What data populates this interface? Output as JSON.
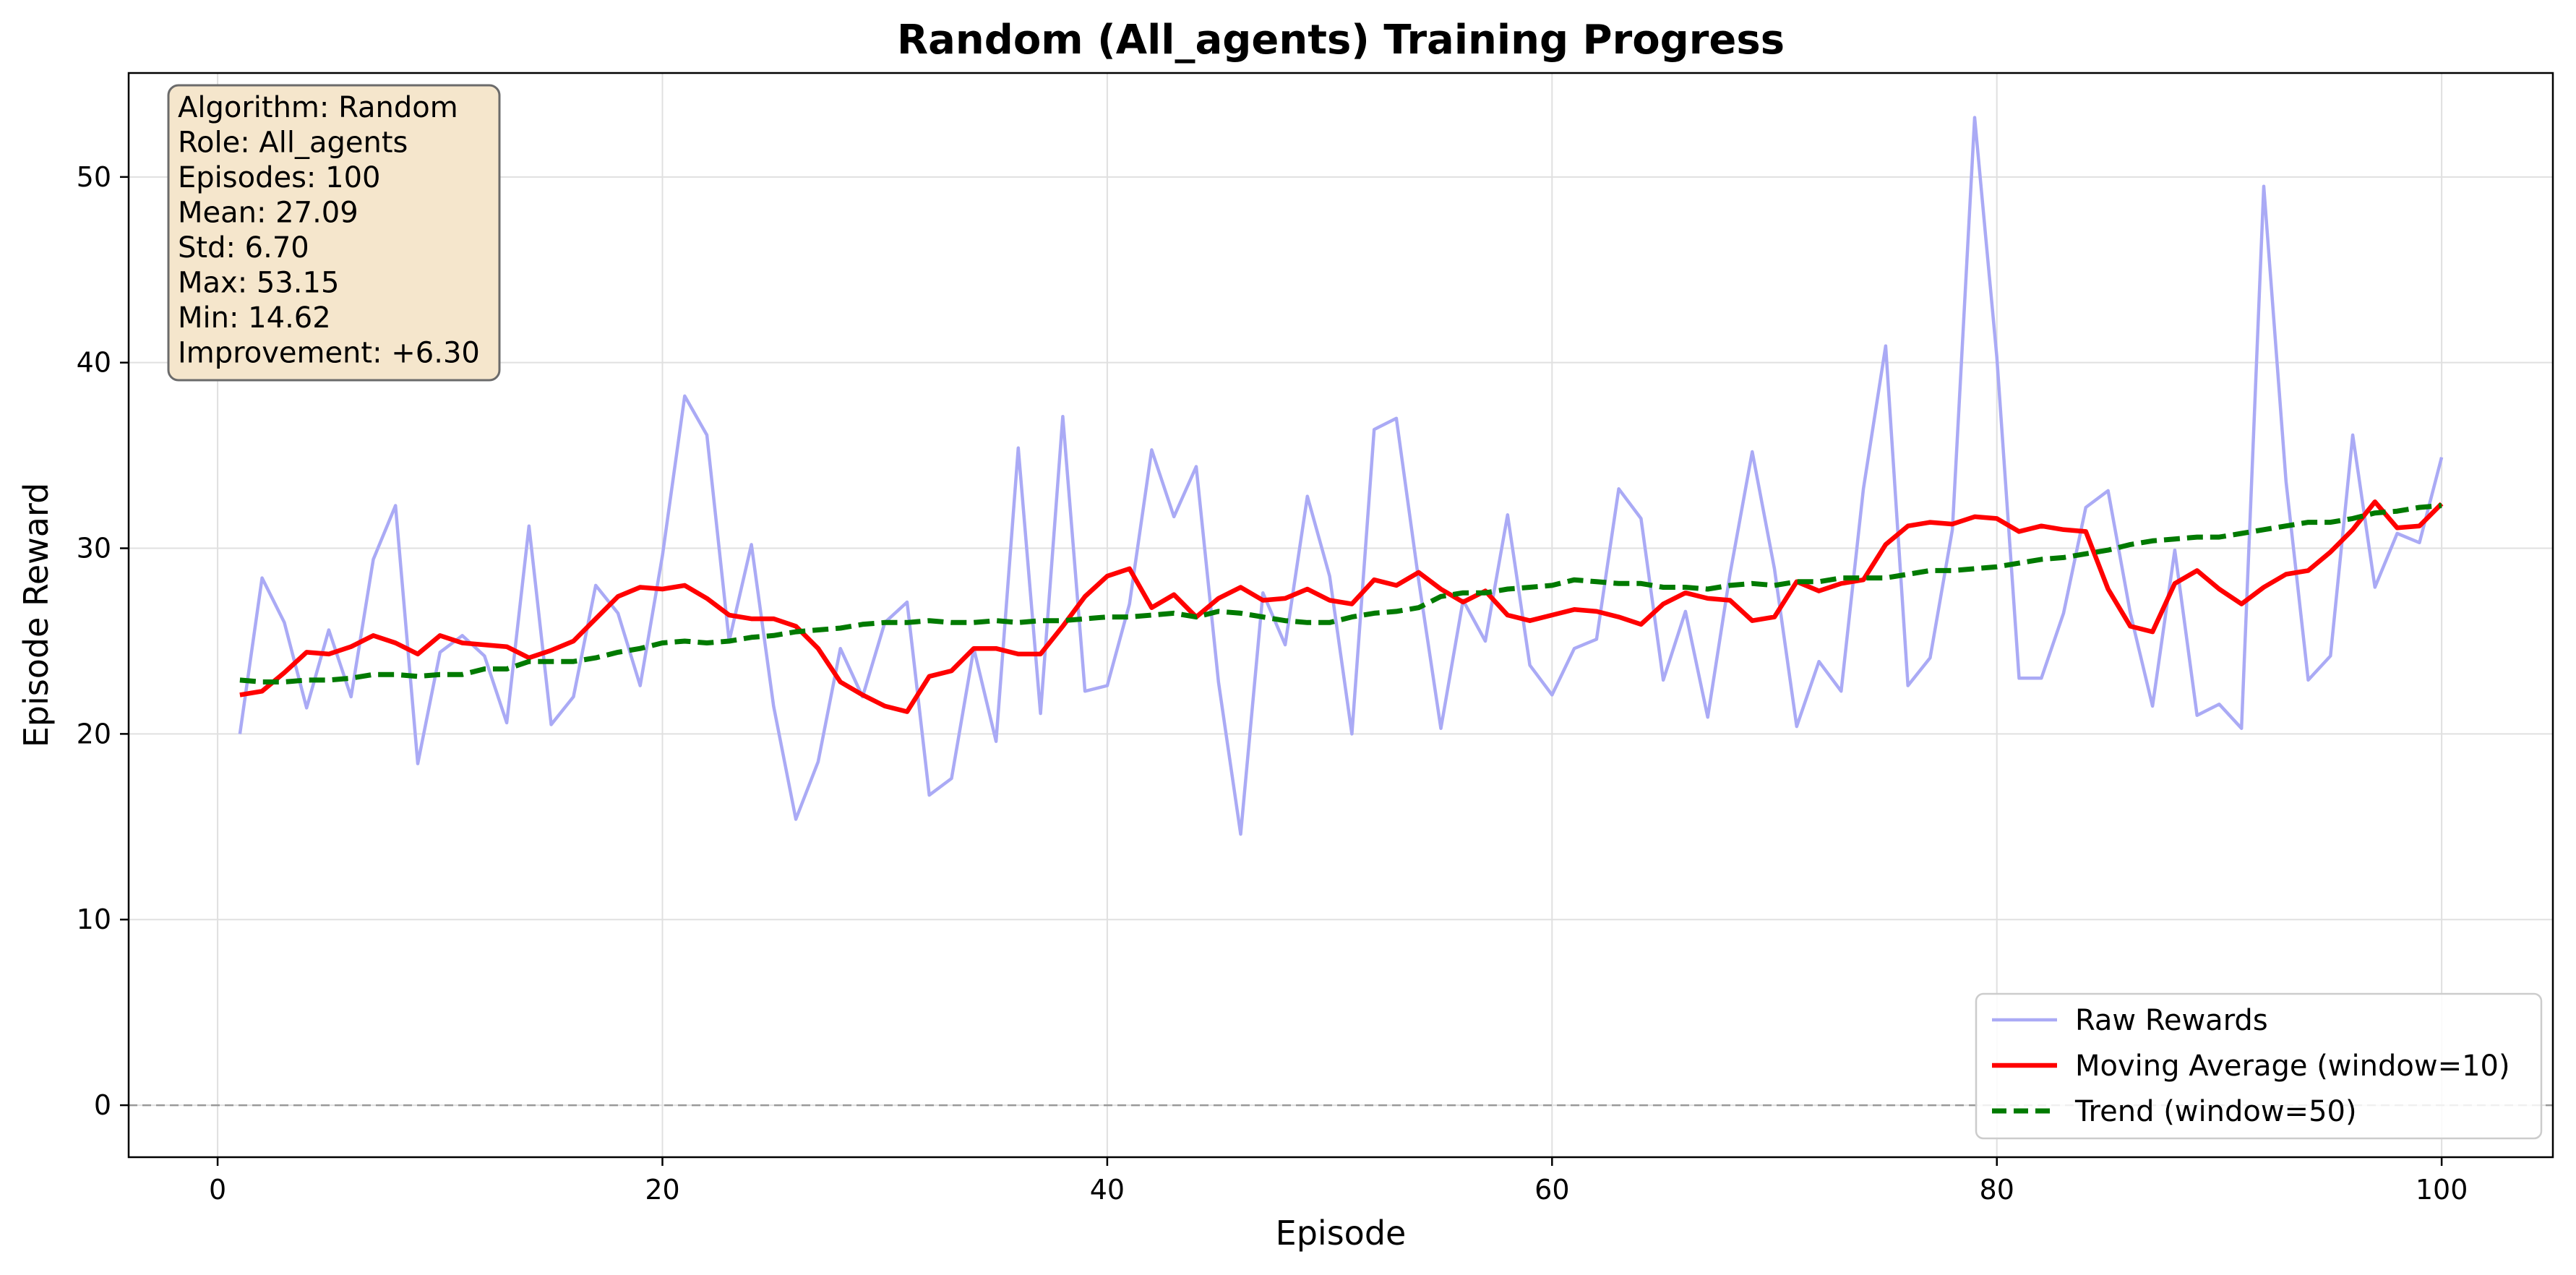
{
  "chart_data": {
    "type": "line",
    "title": "Random (All_agents) Training Progress",
    "xlabel": "Episode",
    "ylabel": "Episode Reward",
    "xlim": [
      -4,
      105
    ],
    "ylim": [
      -2.8,
      55.6
    ],
    "xticks": [
      0,
      20,
      40,
      60,
      80,
      100
    ],
    "yticks": [
      0,
      10,
      20,
      30,
      40,
      50
    ],
    "grid": true,
    "zero_line": 0,
    "legend_position": "lower-right",
    "x": [
      1,
      2,
      3,
      4,
      5,
      6,
      7,
      8,
      9,
      10,
      11,
      12,
      13,
      14,
      15,
      16,
      17,
      18,
      19,
      20,
      21,
      22,
      23,
      24,
      25,
      26,
      27,
      28,
      29,
      30,
      31,
      32,
      33,
      34,
      35,
      36,
      37,
      38,
      39,
      40,
      41,
      42,
      43,
      44,
      45,
      46,
      47,
      48,
      49,
      50,
      51,
      52,
      53,
      54,
      55,
      56,
      57,
      58,
      59,
      60,
      61,
      62,
      63,
      64,
      65,
      66,
      67,
      68,
      69,
      70,
      71,
      72,
      73,
      74,
      75,
      76,
      77,
      78,
      79,
      80,
      81,
      82,
      83,
      84,
      85,
      86,
      87,
      88,
      89,
      90,
      91,
      92,
      93,
      94,
      95,
      96,
      97,
      98,
      99,
      100
    ],
    "series": [
      {
        "name": "Raw Rewards",
        "color": "#aaaaf5",
        "style": "solid",
        "values": [
          20.0,
          28.4,
          26.0,
          21.4,
          25.6,
          22.0,
          29.4,
          32.3,
          18.4,
          24.4,
          25.3,
          24.2,
          20.6,
          31.2,
          20.5,
          22.0,
          28.0,
          26.5,
          22.6,
          29.6,
          38.2,
          36.1,
          25.0,
          30.2,
          21.5,
          15.4,
          18.5,
          24.6,
          22.0,
          26.0,
          27.1,
          16.7,
          17.6,
          24.6,
          19.6,
          35.4,
          21.1,
          37.1,
          22.3,
          22.6,
          27.0,
          35.3,
          31.7,
          34.4,
          22.8,
          14.6,
          27.6,
          24.8,
          32.8,
          28.5,
          20.0,
          36.4,
          37.0,
          28.3,
          20.3,
          27.2,
          25.0,
          31.8,
          23.7,
          22.1,
          24.6,
          25.1,
          33.2,
          31.6,
          22.9,
          26.6,
          20.9,
          28.6,
          35.2,
          28.9,
          20.4,
          23.9,
          22.3,
          33.2,
          40.9,
          22.6,
          24.1,
          31.0,
          53.2,
          40.3,
          23.0,
          23.0,
          26.5,
          32.2,
          33.1,
          26.5,
          21.5,
          29.9,
          21.0,
          21.6,
          20.3,
          49.5,
          33.6,
          22.9,
          24.2,
          36.1,
          27.9,
          30.8,
          30.3,
          34.9
        ]
      },
      {
        "name": "Moving Average (window=10)",
        "color": "#ff0000",
        "style": "solid",
        "values": [
          22.1,
          22.3,
          23.3,
          24.4,
          24.3,
          24.7,
          25.3,
          24.9,
          24.3,
          25.3,
          24.9,
          24.8,
          24.7,
          24.1,
          24.5,
          25.0,
          26.2,
          27.4,
          27.9,
          27.8,
          28.0,
          27.3,
          26.4,
          26.2,
          26.2,
          25.8,
          24.6,
          22.8,
          22.1,
          21.5,
          21.2,
          23.1,
          23.4,
          24.6,
          24.6,
          24.3,
          24.3,
          25.8,
          27.4,
          28.5,
          28.9,
          26.8,
          27.5,
          26.3,
          27.3,
          27.9,
          27.2,
          27.3,
          27.8,
          27.2,
          27.0,
          28.3,
          28.0,
          28.7,
          27.8,
          27.1,
          27.7,
          26.4,
          26.1,
          26.4,
          26.7,
          26.6,
          26.3,
          25.9,
          27.0,
          27.6,
          27.3,
          27.2,
          26.1,
          26.3,
          28.2,
          27.7,
          28.1,
          28.3,
          30.2,
          31.2,
          31.4,
          31.3,
          31.7,
          31.6,
          30.9,
          31.2,
          31.0,
          30.9,
          27.8,
          25.8,
          25.5,
          28.1,
          28.8,
          27.8,
          27.0,
          27.9,
          28.6,
          28.8,
          29.8,
          31.0,
          32.5,
          31.1,
          31.2,
          32.4
        ]
      },
      {
        "name": "Trend (window=50)",
        "color": "#007a00",
        "style": "dashed",
        "values": [
          22.9,
          22.8,
          22.8,
          22.9,
          22.9,
          23.0,
          23.2,
          23.2,
          23.1,
          23.2,
          23.2,
          23.5,
          23.5,
          23.9,
          23.9,
          23.9,
          24.1,
          24.4,
          24.6,
          24.9,
          25.0,
          24.9,
          25.0,
          25.2,
          25.3,
          25.5,
          25.6,
          25.7,
          25.9,
          26.0,
          26.0,
          26.1,
          26.0,
          26.0,
          26.1,
          26.0,
          26.1,
          26.1,
          26.2,
          26.3,
          26.3,
          26.4,
          26.5,
          26.3,
          26.6,
          26.5,
          26.3,
          26.1,
          26.0,
          26.0,
          26.3,
          26.5,
          26.6,
          26.8,
          27.4,
          27.6,
          27.6,
          27.8,
          27.9,
          28.0,
          28.3,
          28.2,
          28.1,
          28.1,
          27.9,
          27.9,
          27.8,
          28.0,
          28.1,
          28.0,
          28.2,
          28.2,
          28.4,
          28.4,
          28.4,
          28.6,
          28.8,
          28.8,
          28.9,
          29.0,
          29.2,
          29.4,
          29.5,
          29.7,
          29.9,
          30.2,
          30.4,
          30.5,
          30.6,
          30.6,
          30.8,
          31.0,
          31.2,
          31.4,
          31.4,
          31.6,
          31.9,
          32.0,
          32.2,
          32.3
        ]
      }
    ],
    "stats_box": [
      "Algorithm: Random",
      "Role: All_agents",
      "Episodes: 100",
      "Mean: 27.09",
      "Std: 6.70",
      "Max: 53.15",
      "Min: 14.62",
      "Improvement: +6.30"
    ]
  },
  "colors": {
    "stats_box_fill": "#f5e6cc",
    "stats_box_edge": "#6b6b6b",
    "grid": "#e0e0e0",
    "zero_line": "#999999"
  }
}
